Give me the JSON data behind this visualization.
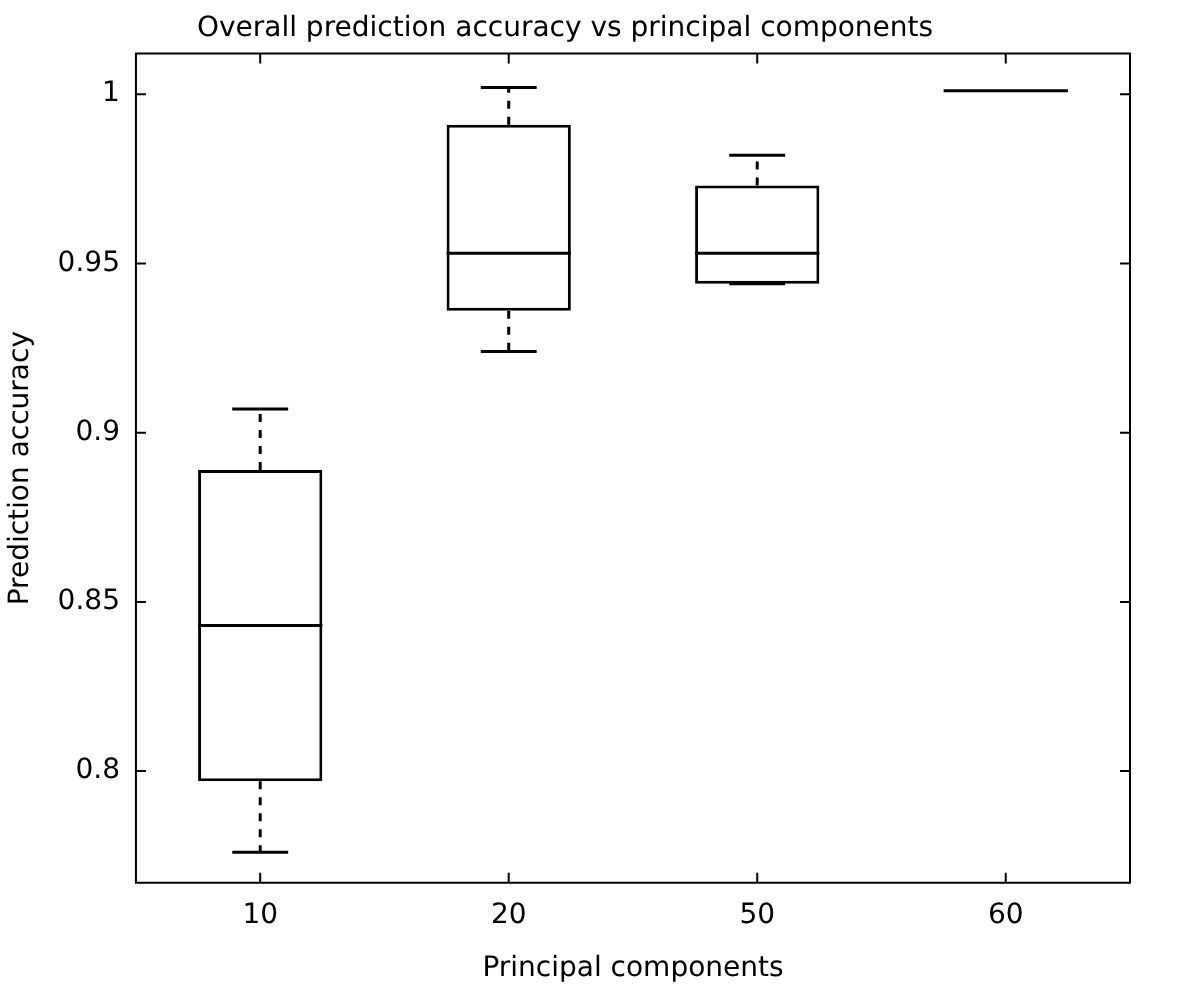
{
  "chart_data": {
    "type": "box",
    "title": "Overall prediction accuracy vs principal components",
    "xlabel": "Principal components",
    "ylabel": "Prediction accuracy",
    "categories": [
      "10",
      "20",
      "50",
      "60"
    ],
    "boxes": [
      {
        "low": 0.776,
        "q1": 0.797,
        "median": 0.843,
        "q3": 0.889,
        "high": 0.907
      },
      {
        "low": 0.924,
        "q1": 0.936,
        "median": 0.953,
        "q3": 0.991,
        "high": 1.002
      },
      {
        "low": 0.944,
        "q1": 0.944,
        "median": 0.953,
        "q3": 0.973,
        "high": 0.982
      },
      {
        "low": 1.001,
        "q1": 1.001,
        "median": 1.001,
        "q3": 1.001,
        "high": 1.001
      }
    ],
    "color": "#000000",
    "ylim": [
      0.767,
      1.012
    ],
    "yticks": [
      0.8,
      0.85,
      0.9,
      0.95,
      1
    ],
    "grid": false,
    "legend": false,
    "line_style": "dashed"
  }
}
